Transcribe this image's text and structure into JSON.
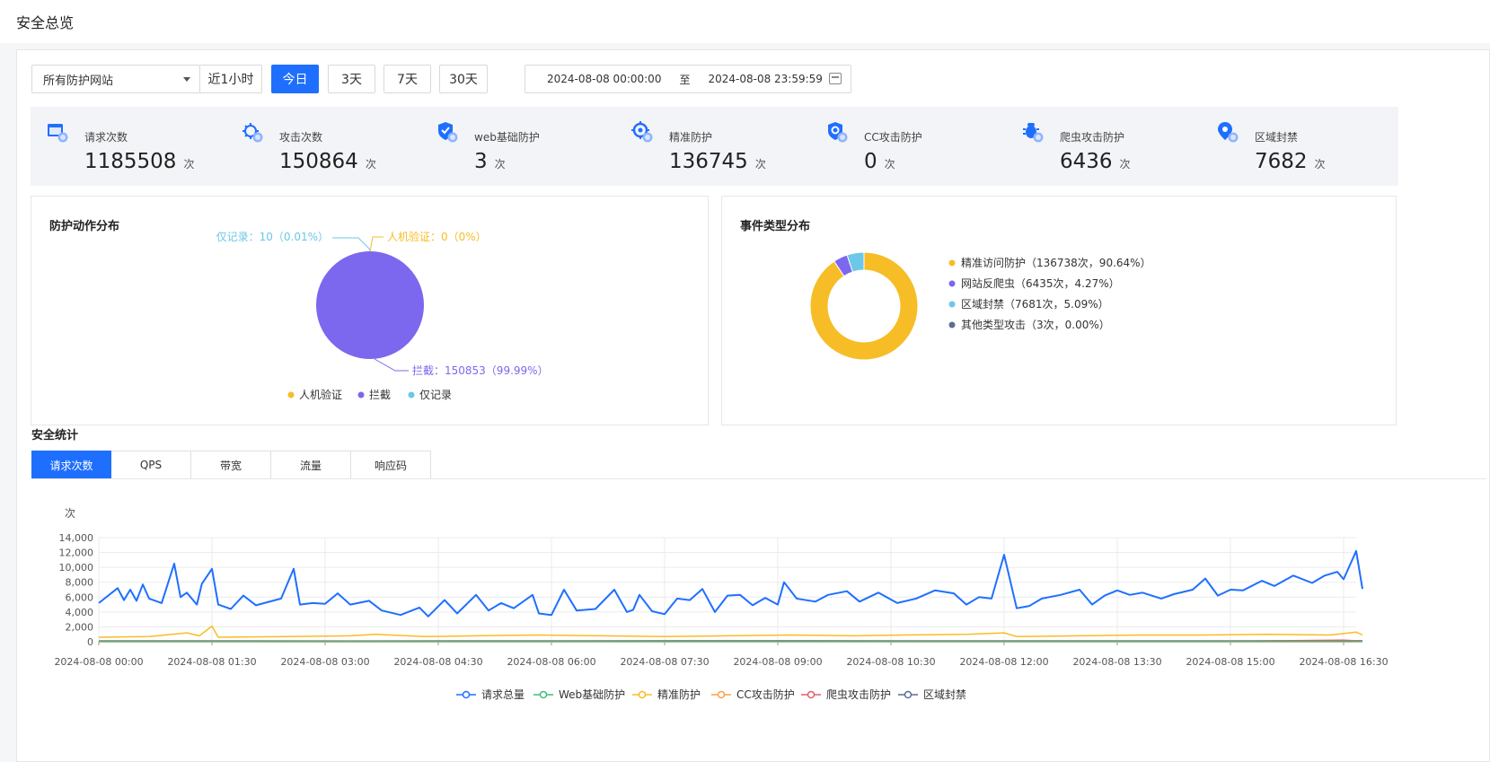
{
  "page": {
    "title": "安全总览"
  },
  "filters": {
    "site_select": "所有防护网站",
    "ranges": [
      {
        "label": "近1小时",
        "active": false
      },
      {
        "label": "今日",
        "active": true
      },
      {
        "label": "3天",
        "active": false
      },
      {
        "label": "7天",
        "active": false
      },
      {
        "label": "30天",
        "active": false
      }
    ],
    "date_start": "2024-08-08 00:00:00",
    "date_sep": "至",
    "date_end": "2024-08-08 23:59:59"
  },
  "stats": [
    {
      "label": "请求次数",
      "value": "1185508",
      "unit": "次",
      "icon": "browser-icon"
    },
    {
      "label": "攻击次数",
      "value": "150864",
      "unit": "次",
      "icon": "virus-icon"
    },
    {
      "label": "web基础防护",
      "value": "3",
      "unit": "次",
      "icon": "shield-icon"
    },
    {
      "label": "精准防护",
      "value": "136745",
      "unit": "次",
      "icon": "target-icon"
    },
    {
      "label": "CC攻击防护",
      "value": "0",
      "unit": "次",
      "icon": "cc-shield-icon"
    },
    {
      "label": "爬虫攻击防护",
      "value": "6436",
      "unit": "次",
      "icon": "bug-icon"
    },
    {
      "label": "区域封禁",
      "value": "7682",
      "unit": "次",
      "icon": "location-pin-icon"
    }
  ],
  "colors": {
    "primary": "#1f6fff",
    "purple": "#7b68ee",
    "yellow": "#f7bd26",
    "cyan": "#6cc7e8",
    "slate": "#5b6e93"
  },
  "action_panel": {
    "title": "防护动作分布",
    "labels": {
      "record": "仅记录：10（0.01%）",
      "captcha": "人机验证：0（0%）",
      "block": "拦截：150853（99.99%）"
    },
    "legend": [
      "人机验证",
      "拦截",
      "仅记录"
    ]
  },
  "event_panel": {
    "title": "事件类型分布",
    "legend": [
      "精准访问防护（136738次，90.64%）",
      "网站反爬虫（6435次，4.27%）",
      "区域封禁（7681次，5.09%）",
      "其他类型攻击（3次，0.00%）"
    ]
  },
  "security_stats": {
    "title": "安全统计",
    "tabs": [
      {
        "label": "请求次数",
        "active": true
      },
      {
        "label": "QPS",
        "active": false
      },
      {
        "label": "带宽",
        "active": false
      },
      {
        "label": "流量",
        "active": false
      },
      {
        "label": "响应码",
        "active": false
      }
    ]
  },
  "chart_data": [
    {
      "type": "pie",
      "title": "防护动作分布",
      "slices": [
        {
          "name": "人机验证",
          "value": 0,
          "percent": 0,
          "color": "#f7bd26"
        },
        {
          "name": "拦截",
          "value": 150853,
          "percent": 99.99,
          "color": "#7b68ee"
        },
        {
          "name": "仅记录",
          "value": 10,
          "percent": 0.01,
          "color": "#6cc7e8"
        }
      ]
    },
    {
      "type": "pie",
      "title": "事件类型分布",
      "donut": true,
      "slices": [
        {
          "name": "精准访问防护",
          "value": 136738,
          "percent": 90.64,
          "color": "#f7bd26"
        },
        {
          "name": "网站反爬虫",
          "value": 6435,
          "percent": 4.27,
          "color": "#7b68ee"
        },
        {
          "name": "区域封禁",
          "value": 7681,
          "percent": 5.09,
          "color": "#6cc7e8"
        },
        {
          "name": "其他类型攻击",
          "value": 3,
          "percent": 0.0,
          "color": "#5b6e93"
        }
      ]
    },
    {
      "type": "line",
      "title": "",
      "ylabel": "次",
      "ylim": [
        0,
        14000
      ],
      "yticks": [
        "0",
        "2,000",
        "4,000",
        "6,000",
        "8,000",
        "10,000",
        "12,000",
        "14,000"
      ],
      "xlim": [
        0,
        1000
      ],
      "x_ticks": [
        {
          "x": 0,
          "label": "2024-08-08 00:00"
        },
        {
          "x": 90,
          "label": "2024-08-08 01:30"
        },
        {
          "x": 180,
          "label": "2024-08-08 03:00"
        },
        {
          "x": 270,
          "label": "2024-08-08 04:30"
        },
        {
          "x": 360,
          "label": "2024-08-08 06:00"
        },
        {
          "x": 450,
          "label": "2024-08-08 07:30"
        },
        {
          "x": 540,
          "label": "2024-08-08 09:00"
        },
        {
          "x": 630,
          "label": "2024-08-08 10:30"
        },
        {
          "x": 720,
          "label": "2024-08-08 12:00"
        },
        {
          "x": 810,
          "label": "2024-08-08 13:30"
        },
        {
          "x": 900,
          "label": "2024-08-08 15:00"
        },
        {
          "x": 990,
          "label": "2024-08-08 16:30"
        }
      ],
      "legend_position": "bottom",
      "series": [
        {
          "name": "请求总量",
          "color": "#1f6fff",
          "points": [
            [
              0,
              5200
            ],
            [
              15,
              7200
            ],
            [
              20,
              5600
            ],
            [
              25,
              7000
            ],
            [
              30,
              5500
            ],
            [
              35,
              7700
            ],
            [
              40,
              5800
            ],
            [
              50,
              5200
            ],
            [
              60,
              10500
            ],
            [
              65,
              6000
            ],
            [
              70,
              6600
            ],
            [
              78,
              5000
            ],
            [
              82,
              7800
            ],
            [
              90,
              9800
            ],
            [
              95,
              5000
            ],
            [
              105,
              4400
            ],
            [
              115,
              6200
            ],
            [
              125,
              4900
            ],
            [
              145,
              5800
            ],
            [
              155,
              9800
            ],
            [
              160,
              5000
            ],
            [
              170,
              5200
            ],
            [
              180,
              5100
            ],
            [
              190,
              6500
            ],
            [
              200,
              5000
            ],
            [
              215,
              5500
            ],
            [
              225,
              4200
            ],
            [
              240,
              3600
            ],
            [
              255,
              4600
            ],
            [
              262,
              3400
            ],
            [
              275,
              5600
            ],
            [
              285,
              3800
            ],
            [
              300,
              6300
            ],
            [
              310,
              4200
            ],
            [
              320,
              5200
            ],
            [
              330,
              4500
            ],
            [
              345,
              6300
            ],
            [
              350,
              3800
            ],
            [
              360,
              3600
            ],
            [
              370,
              7000
            ],
            [
              380,
              4200
            ],
            [
              395,
              4400
            ],
            [
              410,
              7000
            ],
            [
              420,
              4000
            ],
            [
              425,
              4300
            ],
            [
              430,
              6300
            ],
            [
              440,
              4100
            ],
            [
              450,
              3700
            ],
            [
              460,
              5800
            ],
            [
              470,
              5600
            ],
            [
              480,
              7100
            ],
            [
              490,
              4000
            ],
            [
              500,
              6200
            ],
            [
              510,
              6300
            ],
            [
              520,
              4900
            ],
            [
              530,
              5900
            ],
            [
              540,
              5000
            ],
            [
              545,
              8000
            ],
            [
              555,
              5800
            ],
            [
              570,
              5400
            ],
            [
              580,
              6300
            ],
            [
              595,
              6800
            ],
            [
              605,
              5400
            ],
            [
              620,
              6600
            ],
            [
              635,
              5200
            ],
            [
              650,
              5800
            ],
            [
              665,
              6900
            ],
            [
              680,
              6500
            ],
            [
              690,
              5000
            ],
            [
              700,
              6000
            ],
            [
              710,
              5800
            ],
            [
              720,
              11700
            ],
            [
              730,
              4500
            ],
            [
              740,
              4800
            ],
            [
              750,
              5800
            ],
            [
              765,
              6300
            ],
            [
              780,
              7000
            ],
            [
              790,
              5000
            ],
            [
              800,
              6200
            ],
            [
              810,
              6900
            ],
            [
              820,
              6300
            ],
            [
              830,
              6600
            ],
            [
              845,
              5800
            ],
            [
              855,
              6400
            ],
            [
              870,
              7000
            ],
            [
              880,
              8500
            ],
            [
              890,
              6200
            ],
            [
              900,
              7000
            ],
            [
              910,
              6900
            ],
            [
              925,
              8200
            ],
            [
              935,
              7500
            ],
            [
              950,
              8900
            ],
            [
              965,
              7900
            ],
            [
              975,
              8900
            ],
            [
              985,
              9400
            ],
            [
              990,
              8400
            ],
            [
              1000,
              12200
            ],
            [
              1005,
              7100
            ]
          ]
        },
        {
          "name": "Web基础防护",
          "color": "#3fba7e",
          "points": [
            [
              0,
              20
            ],
            [
              1005,
              20
            ]
          ]
        },
        {
          "name": "精准防护",
          "color": "#f7bd26",
          "points": [
            [
              0,
              600
            ],
            [
              40,
              700
            ],
            [
              70,
              1200
            ],
            [
              80,
              800
            ],
            [
              90,
              2100
            ],
            [
              95,
              600
            ],
            [
              150,
              700
            ],
            [
              200,
              800
            ],
            [
              220,
              1000
            ],
            [
              260,
              700
            ],
            [
              300,
              800
            ],
            [
              350,
              900
            ],
            [
              400,
              800
            ],
            [
              450,
              700
            ],
            [
              500,
              800
            ],
            [
              550,
              900
            ],
            [
              600,
              800
            ],
            [
              640,
              900
            ],
            [
              690,
              1000
            ],
            [
              720,
              1200
            ],
            [
              730,
              700
            ],
            [
              780,
              800
            ],
            [
              830,
              900
            ],
            [
              880,
              900
            ],
            [
              930,
              1000
            ],
            [
              980,
              900
            ],
            [
              1000,
              1300
            ],
            [
              1005,
              900
            ]
          ]
        },
        {
          "name": "CC攻击防护",
          "color": "#ff9f43",
          "points": [
            [
              0,
              0
            ],
            [
              1005,
              0
            ]
          ]
        },
        {
          "name": "爬虫攻击防护",
          "color": "#e35d6a",
          "points": [
            [
              0,
              90
            ],
            [
              300,
              80
            ],
            [
              600,
              90
            ],
            [
              900,
              80
            ],
            [
              990,
              200
            ],
            [
              1005,
              90
            ]
          ]
        },
        {
          "name": "区域封禁",
          "color": "#5b6e93",
          "points": [
            [
              0,
              120
            ],
            [
              200,
              110
            ],
            [
              500,
              130
            ],
            [
              800,
              120
            ],
            [
              1005,
              130
            ]
          ]
        }
      ]
    }
  ]
}
